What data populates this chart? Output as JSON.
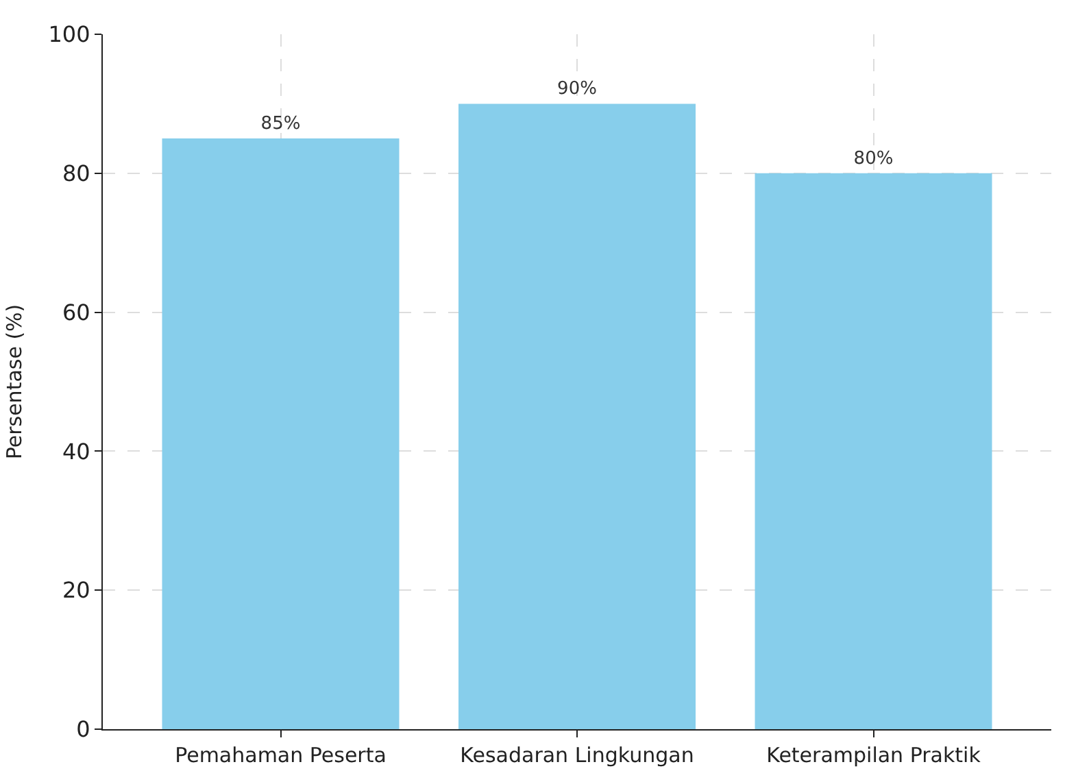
{
  "chart_data": {
    "type": "bar",
    "ylabel": "Persentase (%)",
    "categories": [
      "Pemahaman Peserta",
      "Kesadaran Lingkungan",
      "Keterampilan Praktik"
    ],
    "values": [
      85,
      90,
      80
    ],
    "color": "#87ceeb",
    "value_labels": [
      "85%",
      "90%",
      "80%"
    ],
    "ylim": [
      0,
      100
    ],
    "yticks": [
      0,
      20,
      40,
      60,
      80,
      100
    ],
    "grid": true
  }
}
